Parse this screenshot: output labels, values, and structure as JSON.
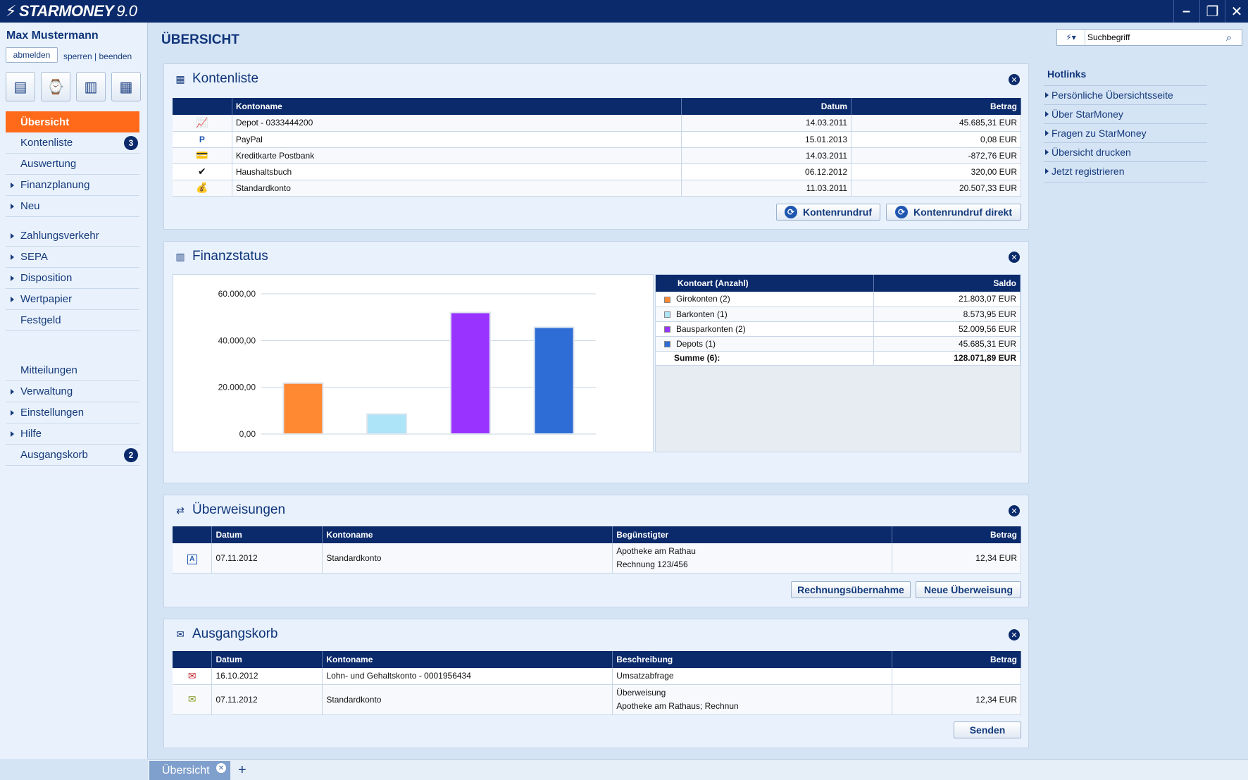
{
  "app": {
    "title": "STARMONEY",
    "version": "9.0"
  },
  "window_controls": {
    "minimize": "–",
    "maximize": "❐",
    "close": "✕"
  },
  "user": {
    "name": "Max Mustermann",
    "logout": "abmelden",
    "lock": "sperren",
    "separator": "|",
    "quit": "beenden"
  },
  "quick_icons": [
    "statement-icon",
    "transfer-clock-icon",
    "finance-chart-icon",
    "calculator-icon"
  ],
  "nav": {
    "group1": [
      {
        "label": "Übersicht",
        "active": true
      },
      {
        "label": "Kontenliste",
        "badge": "3"
      },
      {
        "label": "Auswertung"
      },
      {
        "label": "Finanzplanung",
        "expandable": true
      },
      {
        "label": "Neu",
        "expandable": true
      }
    ],
    "group2": [
      {
        "label": "Zahlungsverkehr",
        "expandable": true
      },
      {
        "label": "SEPA",
        "expandable": true
      },
      {
        "label": "Disposition",
        "expandable": true
      },
      {
        "label": "Wertpapier",
        "expandable": true
      },
      {
        "label": "Festgeld"
      }
    ],
    "group3": [
      {
        "label": "Mitteilungen"
      },
      {
        "label": "Verwaltung",
        "expandable": true
      },
      {
        "label": "Einstellungen",
        "expandable": true
      },
      {
        "label": "Hilfe",
        "expandable": true
      },
      {
        "label": "Ausgangskorb",
        "badge": "2"
      }
    ]
  },
  "page_title": "ÜBERSICHT",
  "search": {
    "placeholder": "Suchbegriff",
    "value": "Suchbegriff"
  },
  "kontenliste": {
    "title": "Kontenliste",
    "headers": {
      "name": "Kontoname",
      "date": "Datum",
      "amount": "Betrag"
    },
    "rows": [
      {
        "icon": "depot-icon",
        "name": "Depot - 0333444200",
        "date": "14.03.2011",
        "amount": "45.685,31 EUR"
      },
      {
        "icon": "paypal-icon",
        "name": "PayPal",
        "date": "15.01.2013",
        "amount": "0,08 EUR"
      },
      {
        "icon": "credit-card-icon",
        "name": "Kreditkarte Postbank",
        "date": "14.03.2011",
        "amount": "-872,76 EUR"
      },
      {
        "icon": "household-book-icon",
        "name": "Haushaltsbuch",
        "date": "06.12.2012",
        "amount": "320,00 EUR"
      },
      {
        "icon": "standard-account-icon",
        "name": "Standardkonto",
        "date": "11.03.2011",
        "amount": "20.507,33 EUR"
      }
    ],
    "buttons": {
      "refresh": "Kontenrundruf",
      "refresh_direct": "Kontenrundruf direkt"
    }
  },
  "finanzstatus": {
    "title": "Finanzstatus",
    "headers": {
      "type": "Kontoart (Anzahl)",
      "balance": "Saldo"
    },
    "rows": [
      {
        "label": "Girokonten (2)",
        "balance": "21.803,07 EUR",
        "color": "#ff8833"
      },
      {
        "label": "Barkonten (1)",
        "balance": "8.573,95 EUR",
        "color": "#aee4f7"
      },
      {
        "label": "Bausparkonten (2)",
        "balance": "52.009,56 EUR",
        "color": "#9933ff"
      },
      {
        "label": "Depots (1)",
        "balance": "45.685,31 EUR",
        "color": "#2e6dd6"
      }
    ],
    "total": {
      "label": "Summe (6):",
      "balance": "128.071,89 EUR"
    }
  },
  "chart_data": {
    "type": "bar",
    "categories": [
      "Girokonten",
      "Barkonten",
      "Bausparkonten",
      "Depots"
    ],
    "values": [
      21803.07,
      8573.95,
      52009.56,
      45685.31
    ],
    "colors": [
      "#ff8833",
      "#aee4f7",
      "#9933ff",
      "#2e6dd6"
    ],
    "ylim": [
      0,
      60000
    ],
    "yticks": [
      0,
      20000,
      40000,
      60000
    ],
    "ytick_labels": [
      "0,00",
      "20.000,00",
      "40.000,00",
      "60.000,00"
    ],
    "grid": true
  },
  "ueberweisungen": {
    "title": "Überweisungen",
    "headers": {
      "date": "Datum",
      "name": "Kontoname",
      "payee": "Begünstigter",
      "amount": "Betrag"
    },
    "rows": [
      {
        "icon": "transfer-a-icon",
        "icon_letter": "A",
        "date": "07.11.2012",
        "name": "Standardkonto",
        "payee_line1": "Apotheke am Rathau",
        "payee_line2": "Rechnung 123/456",
        "amount": "12,34 EUR"
      }
    ],
    "buttons": {
      "invoice": "Rechnungsübernahme",
      "new": "Neue Überweisung"
    }
  },
  "ausgangskorb": {
    "title": "Ausgangskorb",
    "headers": {
      "date": "Datum",
      "name": "Kontoname",
      "desc": "Beschreibung",
      "amount": "Betrag"
    },
    "rows": [
      {
        "icon": "failed-envelope-icon",
        "date": "16.10.2012",
        "name": "Lohn- und Gehaltskonto - 0001956434",
        "desc_line1": "Umsatzabfrage",
        "desc_line2": "",
        "amount": ""
      },
      {
        "icon": "envelope-icon",
        "date": "07.11.2012",
        "name": "Standardkonto",
        "desc_line1": "Überweisung",
        "desc_line2": "Apotheke am Rathaus; Rechnun",
        "amount": "12,34 EUR"
      }
    ],
    "buttons": {
      "send": "Senden"
    }
  },
  "hotlinks": {
    "title": "Hotlinks",
    "items": [
      "Persönliche Übersichtsseite",
      "Über StarMoney",
      "Fragen zu StarMoney",
      "Übersicht drucken",
      "Jetzt registrieren"
    ]
  },
  "tabs": [
    {
      "label": "Übersicht"
    }
  ],
  "tab_add": "+"
}
